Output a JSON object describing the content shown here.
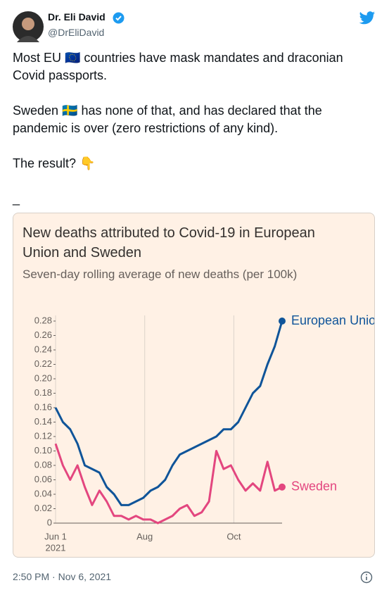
{
  "tweet": {
    "name": "Dr. Eli David",
    "handle": "@DrEliDavid",
    "paragraphs": [
      "Most EU 🇪🇺 countries have mask mandates and draconian Covid passports.",
      "Sweden 🇸🇪 has none of that, and has declared that the pandemic is over (zero restrictions of any kind).",
      "The result? 👇",
      "_"
    ],
    "timestamp": "2:50 PM · Nov 6, 2021"
  },
  "chart_data": {
    "type": "line",
    "title": "New deaths attributed to Covid-19 in European Union and Sweden",
    "subtitle": "Seven-day rolling average of new deaths (per 100k)",
    "x": [
      "2021-06-01",
      "2021-06-06",
      "2021-06-11",
      "2021-06-16",
      "2021-06-21",
      "2021-06-26",
      "2021-07-01",
      "2021-07-06",
      "2021-07-11",
      "2021-07-16",
      "2021-07-21",
      "2021-07-26",
      "2021-07-31",
      "2021-08-05",
      "2021-08-10",
      "2021-08-15",
      "2021-08-20",
      "2021-08-25",
      "2021-08-30",
      "2021-09-04",
      "2021-09-09",
      "2021-09-14",
      "2021-09-19",
      "2021-09-24",
      "2021-09-29",
      "2021-10-04",
      "2021-10-09",
      "2021-10-14",
      "2021-10-19",
      "2021-10-24",
      "2021-10-29",
      "2021-11-03"
    ],
    "series": [
      {
        "name": "European Union",
        "color": "#0f5499",
        "values": [
          0.16,
          0.14,
          0.13,
          0.11,
          0.08,
          0.075,
          0.07,
          0.05,
          0.04,
          0.025,
          0.025,
          0.03,
          0.035,
          0.045,
          0.05,
          0.06,
          0.08,
          0.095,
          0.1,
          0.105,
          0.11,
          0.115,
          0.12,
          0.13,
          0.13,
          0.14,
          0.16,
          0.18,
          0.19,
          0.22,
          0.245,
          0.28
        ]
      },
      {
        "name": "Sweden",
        "color": "#e3467f",
        "values": [
          0.11,
          0.08,
          0.06,
          0.08,
          0.05,
          0.025,
          0.045,
          0.03,
          0.01,
          0.01,
          0.005,
          0.01,
          0.005,
          0.005,
          0,
          0.005,
          0.01,
          0.02,
          0.025,
          0.01,
          0.015,
          0.03,
          0.1,
          0.075,
          0.08,
          0.06,
          0.045,
          0.055,
          0.045,
          0.085,
          0.045,
          0.05
        ]
      }
    ],
    "xlim": [
      "2021-06-01",
      "2021-11-03"
    ],
    "xticks": [
      {
        "value": "2021-06-01",
        "label": "Jun 1"
      },
      {
        "value": "2021-08-01",
        "label": "Aug"
      },
      {
        "value": "2021-10-01",
        "label": "Oct"
      }
    ],
    "year_label": "2021",
    "ylim": [
      0,
      0.28
    ],
    "yticks": [
      0,
      0.02,
      0.04,
      0.06,
      0.08,
      {
        "value": 0.1,
        "label": "0.10"
      },
      0.12,
      0.14,
      0.16,
      0.18,
      {
        "value": 0.2,
        "label": "0.20"
      },
      0.22,
      0.24,
      0.26,
      0.28
    ],
    "grid": true
  }
}
